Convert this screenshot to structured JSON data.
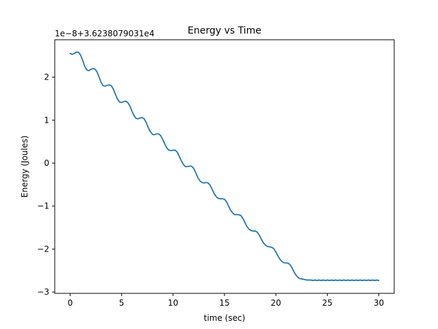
{
  "chart_data": {
    "type": "line",
    "title": "Energy vs Time",
    "xlabel": "time (sec)",
    "ylabel": "Energy (Joules)",
    "offset_label": "1e−8+3.6238079031e4",
    "xlim": [
      -1.5,
      31.5
    ],
    "ylim": [
      -3.03,
      2.87
    ],
    "x_ticks": [
      0,
      5,
      10,
      15,
      20,
      25,
      30
    ],
    "x_tick_labels": [
      "0",
      "5",
      "10",
      "15",
      "20",
      "25",
      "30"
    ],
    "y_ticks": [
      -3,
      -2,
      -1,
      0,
      1,
      2
    ],
    "y_tick_labels": [
      "−3",
      "−2",
      "−1",
      "0",
      "1",
      "2"
    ],
    "grid": false,
    "legend": "none",
    "line_color": "#1f77b4",
    "series": [
      {
        "x": [
          0.0,
          0.2,
          0.4,
          0.6,
          0.8,
          1.0,
          1.2,
          1.4,
          1.6,
          1.8,
          2.0,
          2.2,
          2.4,
          2.6,
          2.8,
          3.0,
          3.2,
          3.4,
          3.6,
          3.8,
          4.0,
          4.2,
          4.4,
          4.6,
          4.8,
          5.0,
          5.2,
          5.4,
          5.6,
          5.8,
          6.0,
          6.2,
          6.4,
          6.6,
          6.8,
          7.0,
          7.2,
          7.4,
          7.6,
          7.8,
          8.0,
          8.2,
          8.4,
          8.6,
          8.8,
          9.0,
          9.2,
          9.4,
          9.6,
          9.8,
          10.0,
          10.2,
          10.4,
          10.6,
          10.8,
          11.0,
          11.2,
          11.4,
          11.6,
          11.8,
          12.0,
          12.2,
          12.4,
          12.6,
          12.8,
          13.0,
          13.2,
          13.4,
          13.6,
          13.8,
          14.0,
          14.2,
          14.4,
          14.6,
          14.8,
          15.0,
          15.2,
          15.4,
          15.6,
          15.8,
          16.0,
          16.2,
          16.4,
          16.6,
          16.8,
          17.0,
          17.2,
          17.4,
          17.6,
          17.8,
          18.0,
          18.2,
          18.4,
          18.6,
          18.8,
          19.0,
          19.2,
          19.4,
          19.6,
          19.8,
          20.0,
          20.2,
          20.4,
          20.6,
          20.8,
          21.0,
          21.2,
          21.4,
          21.6,
          21.8,
          22.0,
          22.2,
          22.4,
          22.6,
          22.8,
          23.0,
          23.2,
          23.4,
          23.6,
          23.8,
          24.0,
          24.2,
          24.4,
          24.6,
          24.8,
          25.0,
          25.2,
          25.4,
          25.6,
          25.8,
          26.0,
          26.2,
          26.4,
          26.6,
          26.8,
          27.0,
          27.2,
          27.4,
          27.6,
          27.8,
          28.0,
          28.2,
          28.4,
          28.6,
          28.8,
          29.0,
          29.2,
          29.4,
          29.6,
          29.8,
          30.0
        ],
        "y": [
          2.55,
          2.53,
          2.55,
          2.58,
          2.58,
          2.52,
          2.4,
          2.26,
          2.17,
          2.15,
          2.18,
          2.2,
          2.19,
          2.13,
          2.01,
          1.88,
          1.8,
          1.79,
          1.81,
          1.82,
          1.8,
          1.72,
          1.6,
          1.49,
          1.42,
          1.41,
          1.43,
          1.44,
          1.41,
          1.33,
          1.21,
          1.11,
          1.04,
          1.03,
          1.05,
          1.06,
          1.03,
          0.94,
          0.82,
          0.73,
          0.67,
          0.66,
          0.68,
          0.68,
          0.64,
          0.55,
          0.44,
          0.35,
          0.3,
          0.29,
          0.3,
          0.3,
          0.26,
          0.16,
          0.06,
          -0.03,
          -0.08,
          -0.08,
          -0.07,
          -0.07,
          -0.12,
          -0.22,
          -0.33,
          -0.41,
          -0.45,
          -0.46,
          -0.45,
          -0.46,
          -0.51,
          -0.61,
          -0.71,
          -0.78,
          -0.82,
          -0.83,
          -0.83,
          -0.84,
          -0.9,
          -1.0,
          -1.1,
          -1.16,
          -1.2,
          -1.2,
          -1.2,
          -1.22,
          -1.29,
          -1.39,
          -1.48,
          -1.54,
          -1.57,
          -1.58,
          -1.58,
          -1.61,
          -1.68,
          -1.78,
          -1.86,
          -1.91,
          -1.94,
          -1.95,
          -1.96,
          -1.99,
          -2.07,
          -2.16,
          -2.24,
          -2.29,
          -2.32,
          -2.32,
          -2.33,
          -2.37,
          -2.45,
          -2.55,
          -2.62,
          -2.67,
          -2.69,
          -2.7,
          -2.71,
          -2.72,
          -2.72,
          -2.72,
          -2.73,
          -2.72,
          -2.73,
          -2.72,
          -2.73,
          -2.72,
          -2.73,
          -2.72,
          -2.73,
          -2.72,
          -2.73,
          -2.72,
          -2.73,
          -2.72,
          -2.73,
          -2.72,
          -2.73,
          -2.72,
          -2.73,
          -2.72,
          -2.73,
          -2.72,
          -2.73,
          -2.72,
          -2.73,
          -2.72,
          -2.73,
          -2.72,
          -2.73,
          -2.72,
          -2.73,
          -2.72,
          -2.73
        ]
      }
    ]
  }
}
